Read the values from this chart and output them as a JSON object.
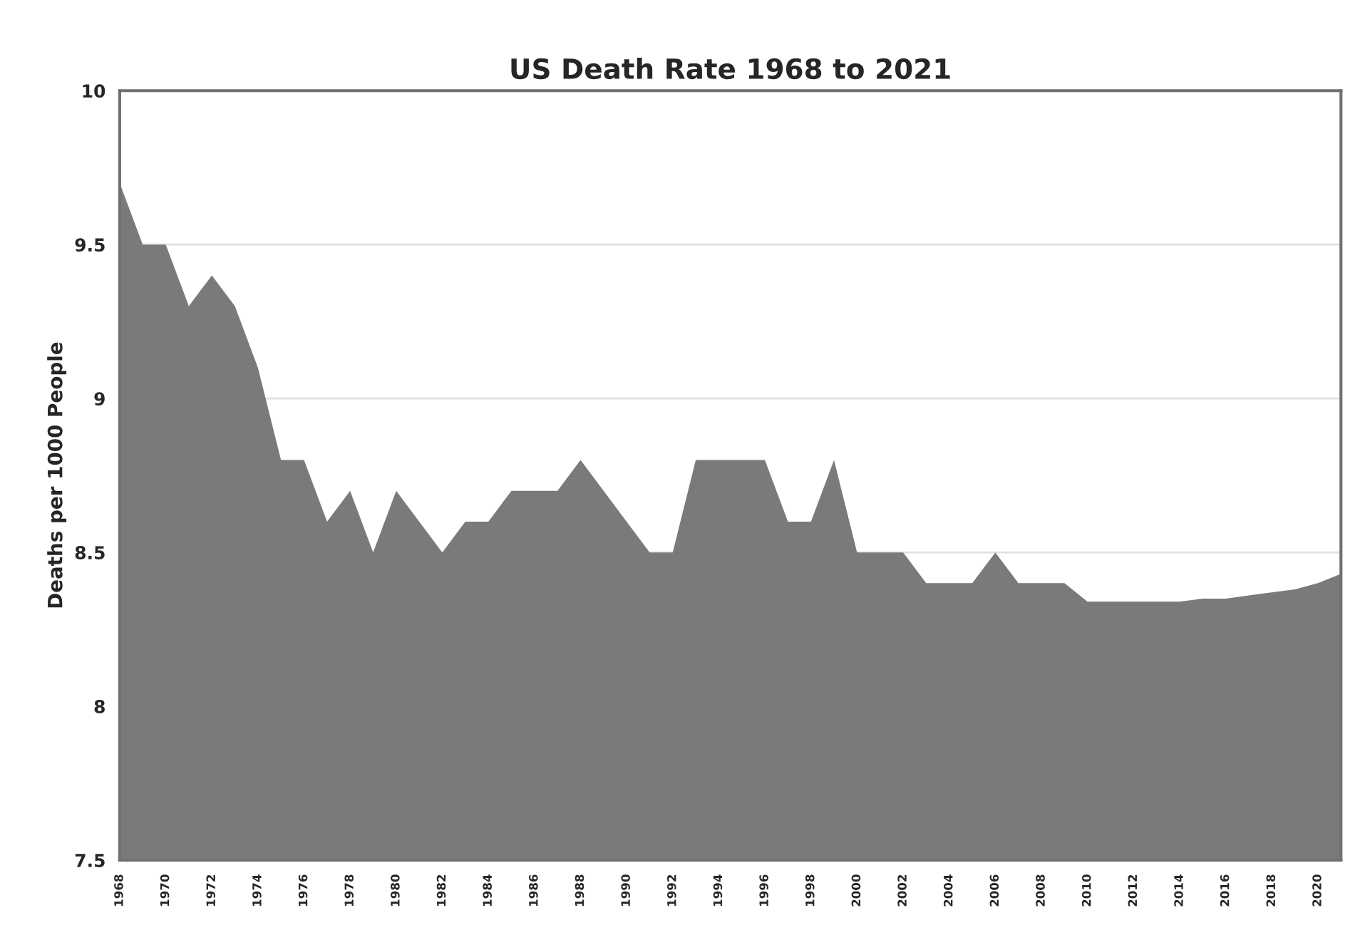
{
  "chart_data": {
    "type": "area",
    "title": "US Death Rate 1968 to 2021",
    "ylabel": "Deaths per 1000 People",
    "x": [
      1968,
      1969,
      1970,
      1971,
      1972,
      1973,
      1974,
      1975,
      1976,
      1977,
      1978,
      1979,
      1980,
      1981,
      1982,
      1983,
      1984,
      1985,
      1986,
      1987,
      1988,
      1989,
      1990,
      1991,
      1992,
      1993,
      1994,
      1995,
      1996,
      1997,
      1998,
      1999,
      2000,
      2001,
      2002,
      2003,
      2004,
      2005,
      2006,
      2007,
      2008,
      2009,
      2010,
      2011,
      2012,
      2013,
      2014,
      2015,
      2016,
      2017,
      2018,
      2019,
      2020,
      2021
    ],
    "series": [
      {
        "color": "#7a7a7a",
        "values": [
          9.7,
          9.5,
          9.5,
          9.3,
          9.4,
          9.3,
          9.1,
          8.8,
          8.8,
          8.6,
          8.7,
          8.5,
          8.7,
          8.6,
          8.5,
          8.6,
          8.6,
          8.7,
          8.7,
          8.7,
          8.8,
          8.7,
          8.6,
          8.5,
          8.5,
          8.8,
          8.8,
          8.8,
          8.8,
          8.6,
          8.6,
          8.8,
          8.5,
          8.5,
          8.5,
          8.4,
          8.4,
          8.4,
          8.5,
          8.4,
          8.4,
          8.4,
          8.34,
          8.34,
          8.34,
          8.34,
          8.34,
          8.35,
          8.35,
          8.36,
          8.37,
          8.38,
          8.4,
          8.43
        ]
      }
    ],
    "xlim": [
      1968,
      2021
    ],
    "xticks": [
      1968,
      1970,
      1972,
      1974,
      1976,
      1978,
      1980,
      1982,
      1984,
      1986,
      1988,
      1990,
      1992,
      1994,
      1996,
      1998,
      2000,
      2002,
      2004,
      2006,
      2008,
      2010,
      2012,
      2014,
      2016,
      2018,
      2020
    ],
    "ylim": [
      7.5,
      10
    ],
    "yticks": [
      7.5,
      8,
      8.5,
      9,
      9.5,
      10
    ],
    "grid": "y",
    "legend": false
  }
}
